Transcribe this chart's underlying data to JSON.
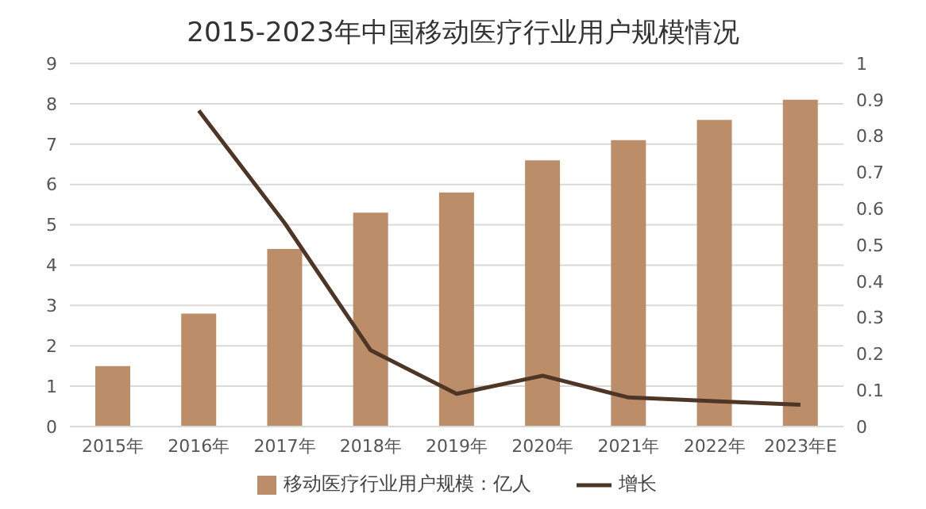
{
  "chart_data": {
    "type": "bar",
    "title": "2015-2023年中国移动医疗行业用户规模情况",
    "categories": [
      "2015年",
      "2016年",
      "2017年",
      "2018年",
      "2019年",
      "2020年",
      "2021年",
      "2022年",
      "2023年E"
    ],
    "series": [
      {
        "name": "移动医疗行业用户规模：亿人",
        "color": "#bb8d68",
        "values": [
          1.5,
          2.8,
          4.4,
          5.3,
          5.8,
          6.6,
          7.1,
          7.6,
          8.1
        ]
      },
      {
        "name": "增长",
        "type": "line",
        "axis": "y2",
        "color": "#4e3626",
        "values": [
          null,
          0.87,
          0.56,
          0.21,
          0.09,
          0.14,
          0.08,
          0.07,
          0.06
        ]
      }
    ],
    "ylim": [
      0,
      9
    ],
    "yticks": [
      0,
      1,
      2,
      3,
      4,
      5,
      6,
      7,
      8,
      9
    ],
    "y2lim": [
      0,
      1
    ],
    "y2ticks": [
      0,
      0.1,
      0.2,
      0.3,
      0.4,
      0.5,
      0.6,
      0.7,
      0.8,
      0.9,
      1
    ],
    "grid": "y",
    "legend": "bottom",
    "marker": "none"
  }
}
